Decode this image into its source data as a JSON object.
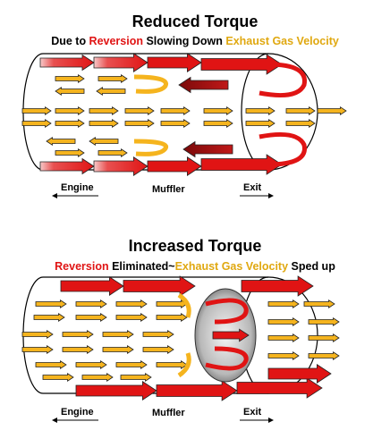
{
  "panel1": {
    "title": "Reduced Torque",
    "sub_part1": "Due to ",
    "sub_reversion": "Reversion",
    "sub_part2": " Slowing Down ",
    "sub_exhaust": "Exhaust Gas Velocity",
    "label_engine": "Engine",
    "label_muffler": "Muffler",
    "label_exit": "Exit"
  },
  "panel2": {
    "title": "Increased Torque",
    "sub_reversion": "Reversion",
    "sub_part1": " Eliminated~",
    "sub_exhaust": "Exhaust Gas Velocity",
    "sub_part2": " Sped up",
    "label_engine": "Engine",
    "label_muffler": "Muffler",
    "label_exit": "Exit"
  },
  "colors": {
    "reversion_red": "#e01414",
    "exhaust_gold": "#e0a810",
    "arrow_yellow": "#f5b41e"
  }
}
